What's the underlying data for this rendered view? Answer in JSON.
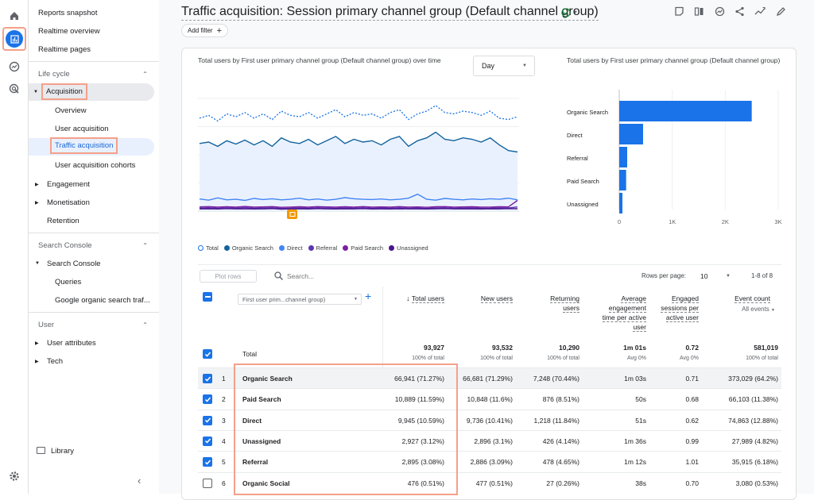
{
  "nav": {
    "top_items": [
      "Reports snapshot",
      "Realtime overview",
      "Realtime pages"
    ],
    "lifecycle_label": "Life cycle",
    "acquisition": "Acquisition",
    "acq_children": [
      "Overview",
      "User acquisition",
      "Traffic acquisition",
      "User acquisition cohorts"
    ],
    "lifecycle_rest": [
      "Engagement",
      "Monetisation",
      "Retention"
    ],
    "search_console_section": "Search Console",
    "search_console": "Search Console",
    "sc_children": [
      "Queries",
      "Google organic search traf..."
    ],
    "user_section": "User",
    "user_items": [
      "User attributes",
      "Tech"
    ],
    "library": "Library"
  },
  "header": {
    "title": "Traffic acquisition: Session primary channel group (Default channel group)",
    "add_filter": "Add filter"
  },
  "line_chart": {
    "title": "Total users by First user primary channel group (Default channel group) over time",
    "period": "Day"
  },
  "bar_chart_title": "Total users by First user primary channel group (Default channel group)",
  "chart_data": [
    {
      "type": "line",
      "series": [
        {
          "name": "Total",
          "color": "#1a73e8",
          "values": [
            3300,
            3400,
            3200,
            3450,
            3350,
            3500,
            3300,
            3450,
            3250,
            3550,
            3400,
            3350,
            3500,
            3300,
            3450,
            3600,
            3350,
            3500,
            3400,
            3450,
            3300,
            3500,
            3600,
            3250,
            3450,
            3550,
            3750,
            3500,
            3450,
            3550,
            3500,
            3400,
            3550,
            3300,
            3250,
            3350
          ]
        },
        {
          "name": "Organic Search",
          "color": "#12639e",
          "values": [
            2400,
            2450,
            2300,
            2500,
            2380,
            2520,
            2350,
            2500,
            2300,
            2600,
            2450,
            2400,
            2550,
            2350,
            2500,
            2650,
            2400,
            2550,
            2450,
            2500,
            2350,
            2550,
            2650,
            2300,
            2500,
            2600,
            2800,
            2550,
            2500,
            2600,
            2550,
            2450,
            2600,
            2350,
            2150,
            2100
          ]
        },
        {
          "name": "Direct",
          "color": "#4285f4",
          "values": [
            430,
            390,
            470,
            400,
            420,
            380,
            450,
            410,
            440,
            400,
            420,
            460,
            400,
            430,
            390,
            420,
            480,
            440,
            420,
            410,
            430,
            400,
            420,
            460,
            600,
            420,
            390,
            450,
            420,
            400,
            430,
            410,
            440,
            420,
            460,
            400
          ]
        },
        {
          "name": "Referral",
          "color": "#5e35b1",
          "values": [
            110,
            120,
            100,
            115,
            105,
            130,
            100,
            110,
            120,
            95,
            105,
            115,
            100,
            120,
            110,
            100,
            115,
            105,
            120,
            100,
            110,
            105,
            120,
            100,
            110,
            95,
            115,
            120,
            100,
            110,
            115,
            100,
            105,
            115,
            110,
            150
          ]
        },
        {
          "name": "Paid Search",
          "color": "#7b1fa2",
          "values": [
            150,
            160,
            140,
            155,
            145,
            165,
            140,
            150,
            160,
            135,
            145,
            155,
            140,
            160,
            150,
            140,
            155,
            145,
            160,
            140,
            150,
            145,
            160,
            140,
            150,
            135,
            155,
            160,
            140,
            150,
            155,
            140,
            145,
            155,
            150,
            380
          ]
        },
        {
          "name": "Unassigned",
          "color": "#4a148c",
          "values": [
            80,
            85,
            75,
            90,
            80,
            85,
            75,
            80,
            90,
            70,
            80,
            85,
            75,
            90,
            80,
            75,
            85,
            80,
            90,
            75,
            80,
            75,
            85,
            80,
            80,
            75,
            85,
            90,
            80,
            85,
            80,
            75,
            85,
            80,
            90,
            85
          ]
        }
      ]
    },
    {
      "type": "bar",
      "categories": [
        "Organic Search",
        "Direct",
        "Referral",
        "Paid Search",
        "Unassigned"
      ],
      "values": [
        2500,
        450,
        150,
        130,
        60
      ],
      "xticks": [
        "0",
        "1K",
        "2K",
        "3K"
      ],
      "xlim": [
        0,
        3000
      ]
    }
  ],
  "table": {
    "plot_rows": "Plot rows",
    "search_placeholder": "Search...",
    "rows_per_page_label": "Rows per page:",
    "rows_per_page": "10",
    "pagination": "1-8 of 8",
    "dimension": "First user prim...channel group)",
    "columns": [
      "Total users",
      "New users",
      "Returning users",
      "Average engagement time per active user",
      "Engaged sessions per active user",
      "Event count"
    ],
    "event_sub": "All events",
    "total": {
      "label": "Total",
      "values": [
        "93,927",
        "93,532",
        "10,290",
        "1m 01s",
        "0.72",
        "581,019"
      ],
      "subs": [
        "100% of total",
        "100% of total",
        "100% of total",
        "Avg 0%",
        "Avg 0%",
        "100% of total"
      ]
    },
    "rows": [
      {
        "n": "1",
        "ch": "Organic Search",
        "tu": "66,941 (71.27%)",
        "nu": "66,681 (71.29%)",
        "ru": "7,248 (70.44%)",
        "aet": "1m 03s",
        "es": "0.71",
        "ec": "373,029 (64.2%)",
        "checked": true
      },
      {
        "n": "2",
        "ch": "Paid Search",
        "tu": "10,889 (11.59%)",
        "nu": "10,848 (11.6%)",
        "ru": "876 (8.51%)",
        "aet": "50s",
        "es": "0.68",
        "ec": "66,103 (11.38%)",
        "checked": true
      },
      {
        "n": "3",
        "ch": "Direct",
        "tu": "9,945 (10.59%)",
        "nu": "9,736 (10.41%)",
        "ru": "1,218 (11.84%)",
        "aet": "51s",
        "es": "0.62",
        "ec": "74,863 (12.88%)",
        "checked": true
      },
      {
        "n": "4",
        "ch": "Unassigned",
        "tu": "2,927 (3.12%)",
        "nu": "2,896 (3.1%)",
        "ru": "426 (4.14%)",
        "aet": "1m 36s",
        "es": "0.99",
        "ec": "27,989 (4.82%)",
        "checked": true
      },
      {
        "n": "5",
        "ch": "Referral",
        "tu": "2,895 (3.08%)",
        "nu": "2,886 (3.09%)",
        "ru": "478 (4.65%)",
        "aet": "1m 12s",
        "es": "1.01",
        "ec": "35,915 (6.18%)",
        "checked": true
      },
      {
        "n": "6",
        "ch": "Organic Social",
        "tu": "476 (0.51%)",
        "nu": "477 (0.51%)",
        "ru": "27 (0.26%)",
        "aet": "38s",
        "es": "0.70",
        "ec": "3,080 (0.53%)",
        "checked": false
      }
    ]
  },
  "colors": {
    "accent": "#1a73e8",
    "highlight": "#f4a08a"
  }
}
